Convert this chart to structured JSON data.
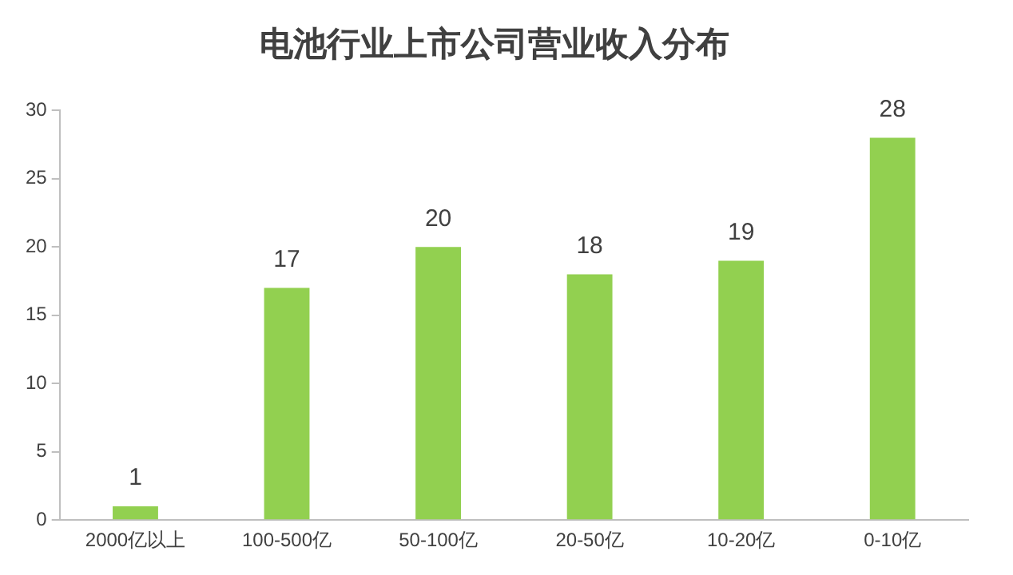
{
  "chart_data": {
    "type": "bar",
    "title": "电池行业上市公司营业收入分布",
    "categories": [
      "2000亿以上",
      "100-500亿",
      "50-100亿",
      "20-50亿",
      "10-20亿",
      "0-10亿"
    ],
    "values": [
      1,
      17,
      20,
      18,
      19,
      28
    ],
    "color": "#92d050",
    "ylim": [
      0,
      30
    ],
    "yticks": [
      0,
      5,
      10,
      15,
      20,
      25,
      30
    ],
    "grid": false,
    "legend": false,
    "data_labels": true
  }
}
